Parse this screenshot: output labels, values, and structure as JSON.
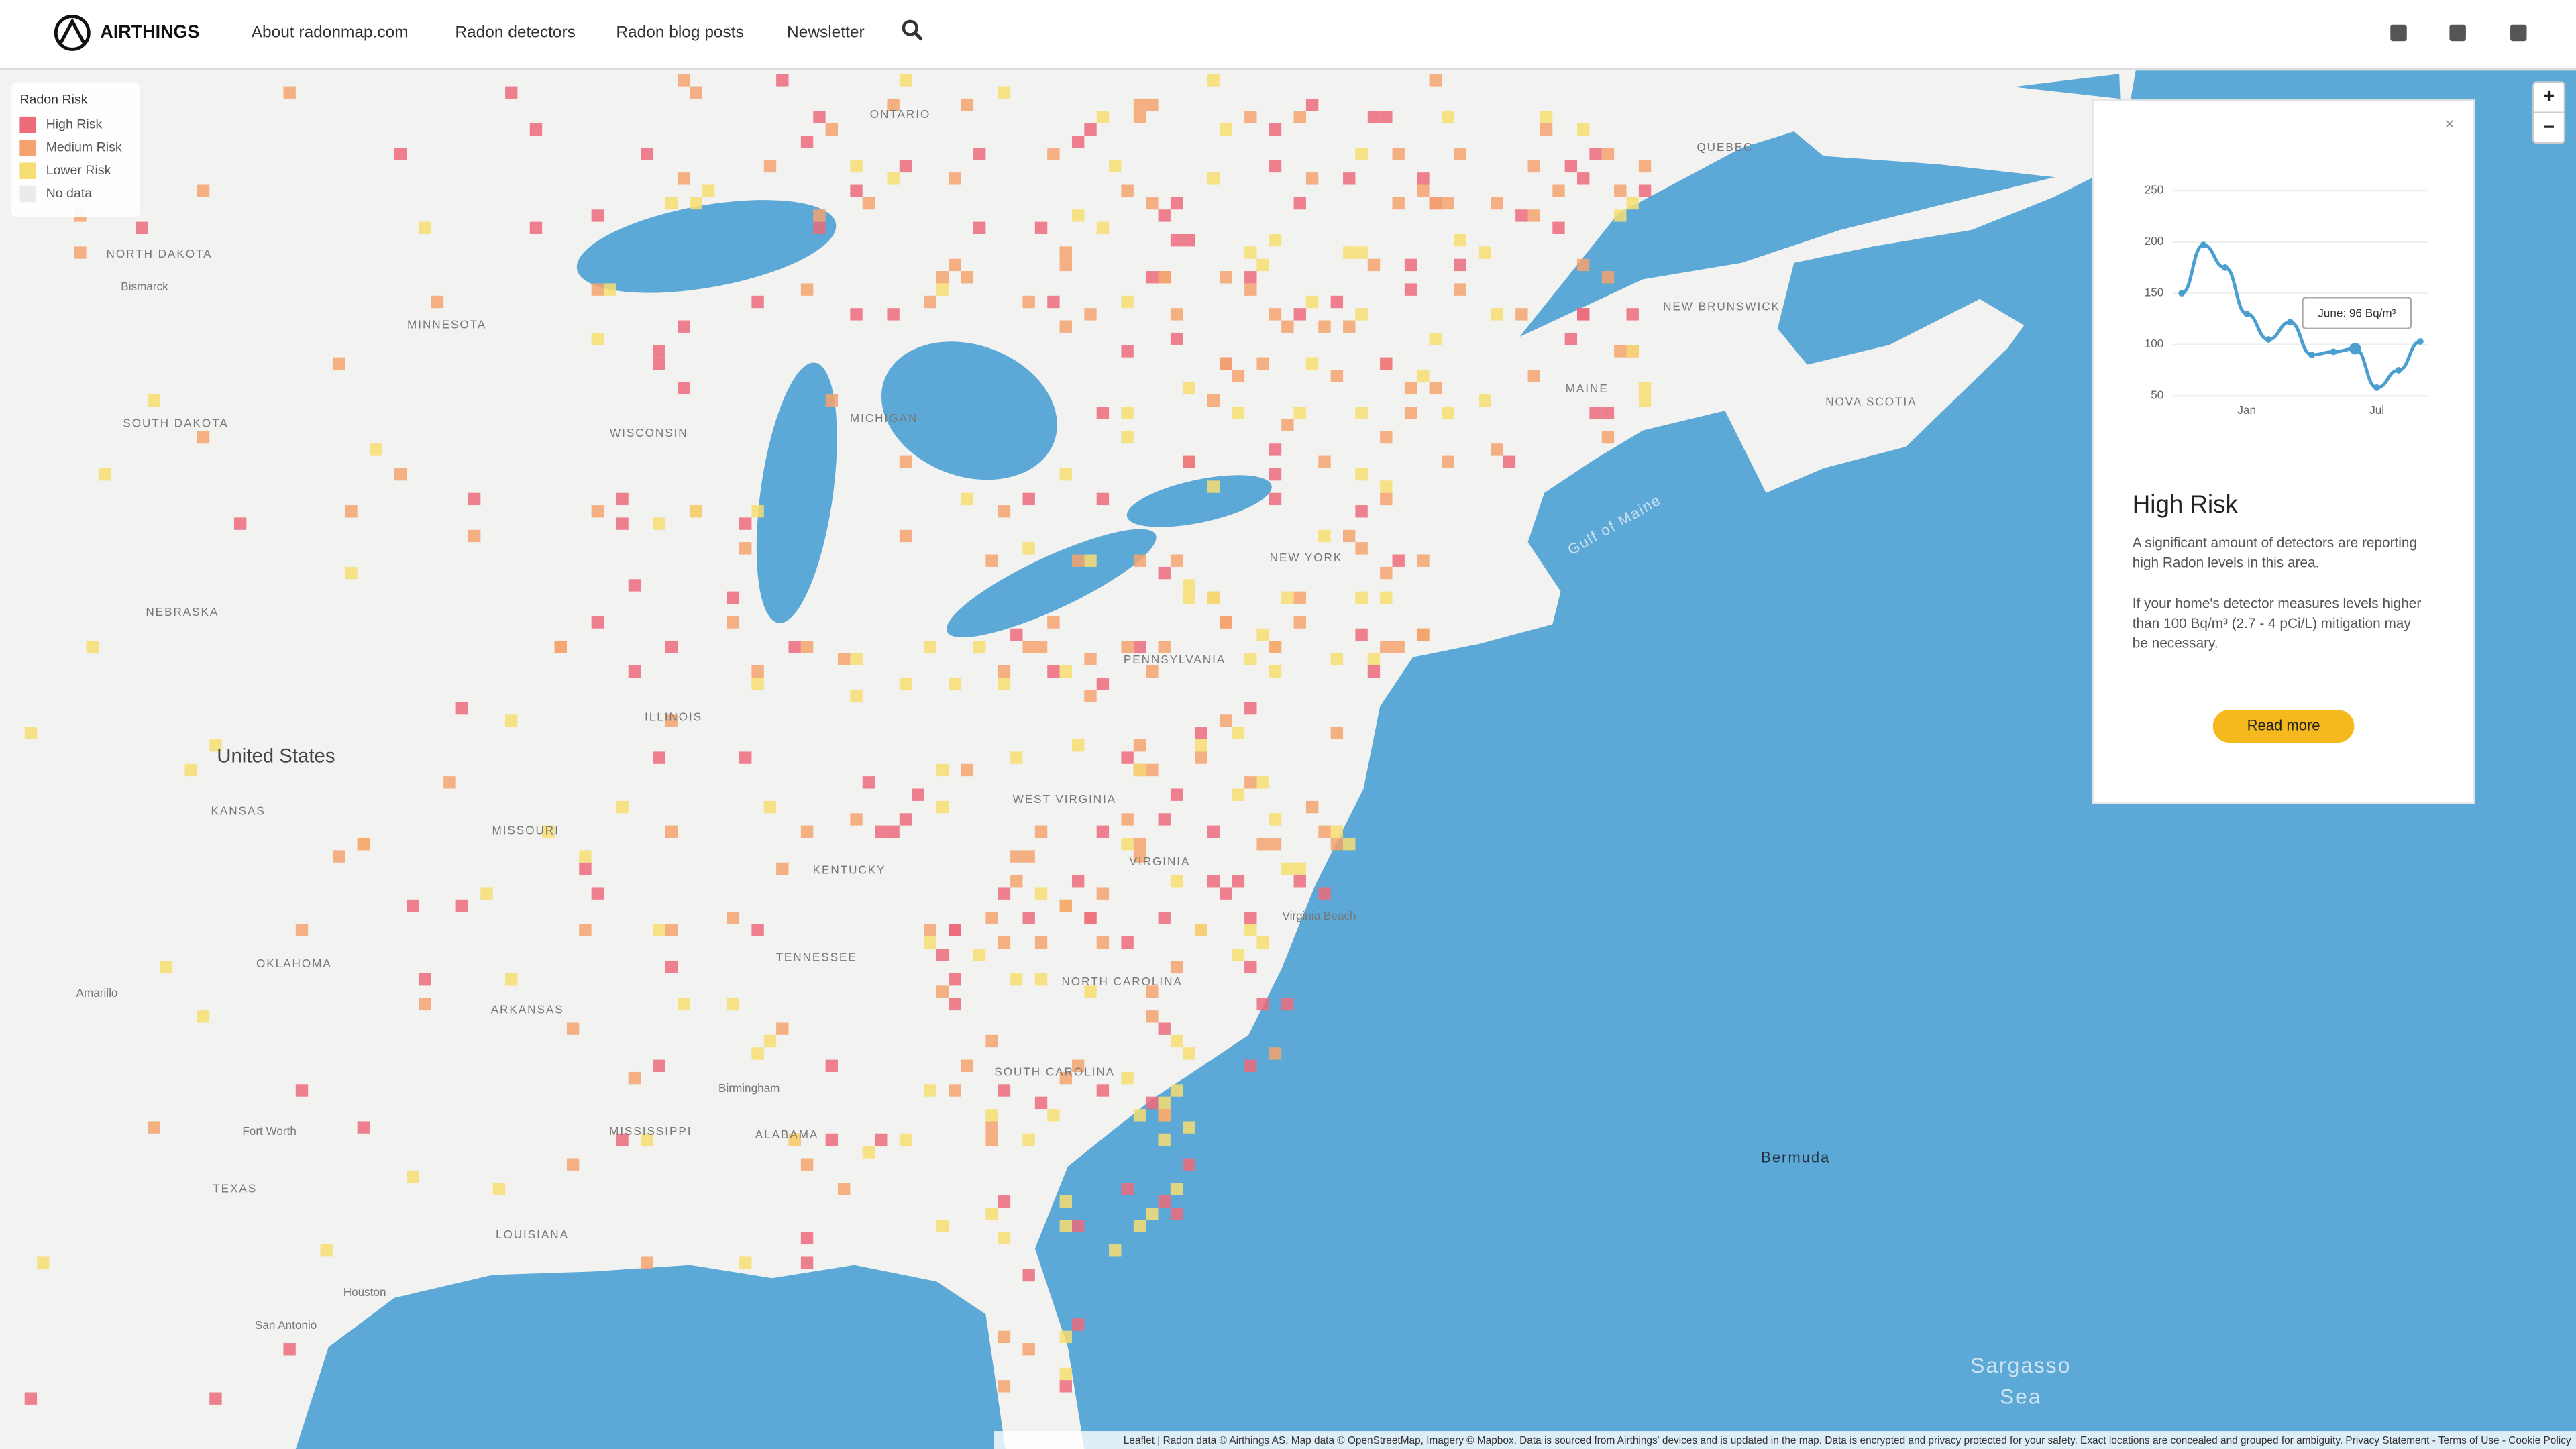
{
  "header": {
    "brand": "AIRTHINGS",
    "nav": [
      "About radonmap.com",
      "Radon detectors",
      "Radon blog posts",
      "Newsletter"
    ]
  },
  "legend": {
    "title": "Radon Risk",
    "items": [
      {
        "label": "High Risk",
        "color": "#ec6b7c"
      },
      {
        "label": "Medium Risk",
        "color": "#f4a36e"
      },
      {
        "label": "Lower Risk",
        "color": "#f7de72"
      },
      {
        "label": "No data",
        "color": "#ebebeb"
      }
    ]
  },
  "map": {
    "labels": [
      "ONTARIO",
      "QUEBEC",
      "NORTH DAKOTA",
      "MINNESOTA",
      "SOUTH DAKOTA",
      "WISCONSIN",
      "MICHIGAN",
      "NEBRASKA",
      "ILLINOIS",
      "United States",
      "KANSAS",
      "MISSOURI",
      "KENTUCKY",
      "WEST VIRGINIA",
      "VIRGINIA",
      "PENNSYLVANIA",
      "NEW YORK",
      "MAINE",
      "NEW BRUNSWICK",
      "NOVA SCOTIA",
      "OKLAHOMA",
      "ARKANSAS",
      "TENNESSEE",
      "NORTH CAROLINA",
      "SOUTH CAROLINA",
      "MISSISSIPPI",
      "ALABAMA",
      "TEXAS",
      "LOUISIANA",
      "Gulf of Maine",
      "Bermuda",
      "Sargasso",
      "Sea",
      "Bismarck",
      "Fort Worth",
      "Houston",
      "San Antonio",
      "Amarillo",
      "Birmingham",
      "Virginia Beach"
    ]
  },
  "popup": {
    "close": "×",
    "chart": {
      "type": "line",
      "categories": [
        null,
        null,
        null,
        "Jan",
        null,
        null,
        null,
        null,
        null,
        "Jul",
        null,
        null
      ],
      "values": [
        150,
        197,
        175,
        130,
        105,
        122,
        90,
        93,
        96,
        58,
        75,
        103
      ],
      "color": "#4a9fd0",
      "ylim": [
        50,
        250
      ],
      "yticks": [
        50,
        100,
        150,
        200,
        250
      ],
      "grid": true,
      "tooltip": "June: 96 Bq/m³"
    },
    "heading": "High Risk",
    "paragraphs": [
      [
        "A significant amount of detectors are reporting",
        "high Radon levels in this area."
      ],
      [
        "If your home's detector measures levels higher",
        "than 100 Bq/m³ (2.7 - 4 pCi/L) mitigation may",
        "be necessary."
      ]
    ],
    "button": "Read more"
  },
  "zoom": [
    "+",
    "−"
  ],
  "attribution": "Leaflet | Radon data © Airthings AS, Map data © OpenStreetMap, Imagery © Mapbox. Data is sourced from Airthings' devices and is updated in the map. Data is encrypted and privacy protected for your safety. Exact locations are concealed and grouped for ambiguity. Privacy Statement - Terms of Use - Cookie Policy"
}
